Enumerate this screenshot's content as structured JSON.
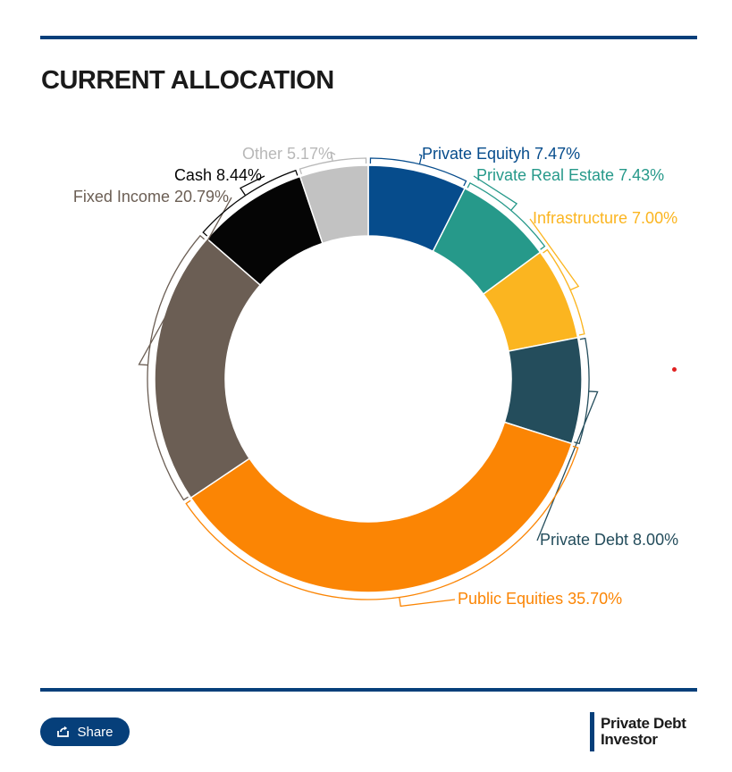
{
  "header": {
    "title": "CURRENT ALLOCATION"
  },
  "share": {
    "label": "Share",
    "icon": "share-icon"
  },
  "brand": {
    "line1": "Private Debt",
    "line2": "Investor"
  },
  "chart_data": {
    "type": "pie",
    "title": "CURRENT ALLOCATION",
    "donut": true,
    "categories": [
      "Private Equityh",
      "Private Real Estate",
      "Infrastructure",
      "Private Debt",
      "Public Equities",
      "Fixed Income",
      "Cash",
      "Other"
    ],
    "values": [
      7.47,
      7.43,
      7.0,
      8.0,
      35.7,
      20.79,
      8.44,
      5.17
    ],
    "labels": [
      "Private Equityh 7.47%",
      "Private Real Estate 7.43%",
      "Infrastructure 7.00%",
      "Private Debt 8.00%",
      "Public Equities 35.70%",
      "Fixed Income 20.79%",
      "Cash 8.44%",
      "Other 5.17%"
    ],
    "colors": [
      "#064c8c",
      "#26998a",
      "#fbb520",
      "#244d5c",
      "#fb8504",
      "#6b5e54",
      "#050505",
      "#c2c2c2"
    ],
    "label_colors": [
      "#064c8c",
      "#26998a",
      "#fbb520",
      "#244d5c",
      "#fb8504",
      "#6b5e54",
      "#050505",
      "#b8b8b8"
    ]
  }
}
